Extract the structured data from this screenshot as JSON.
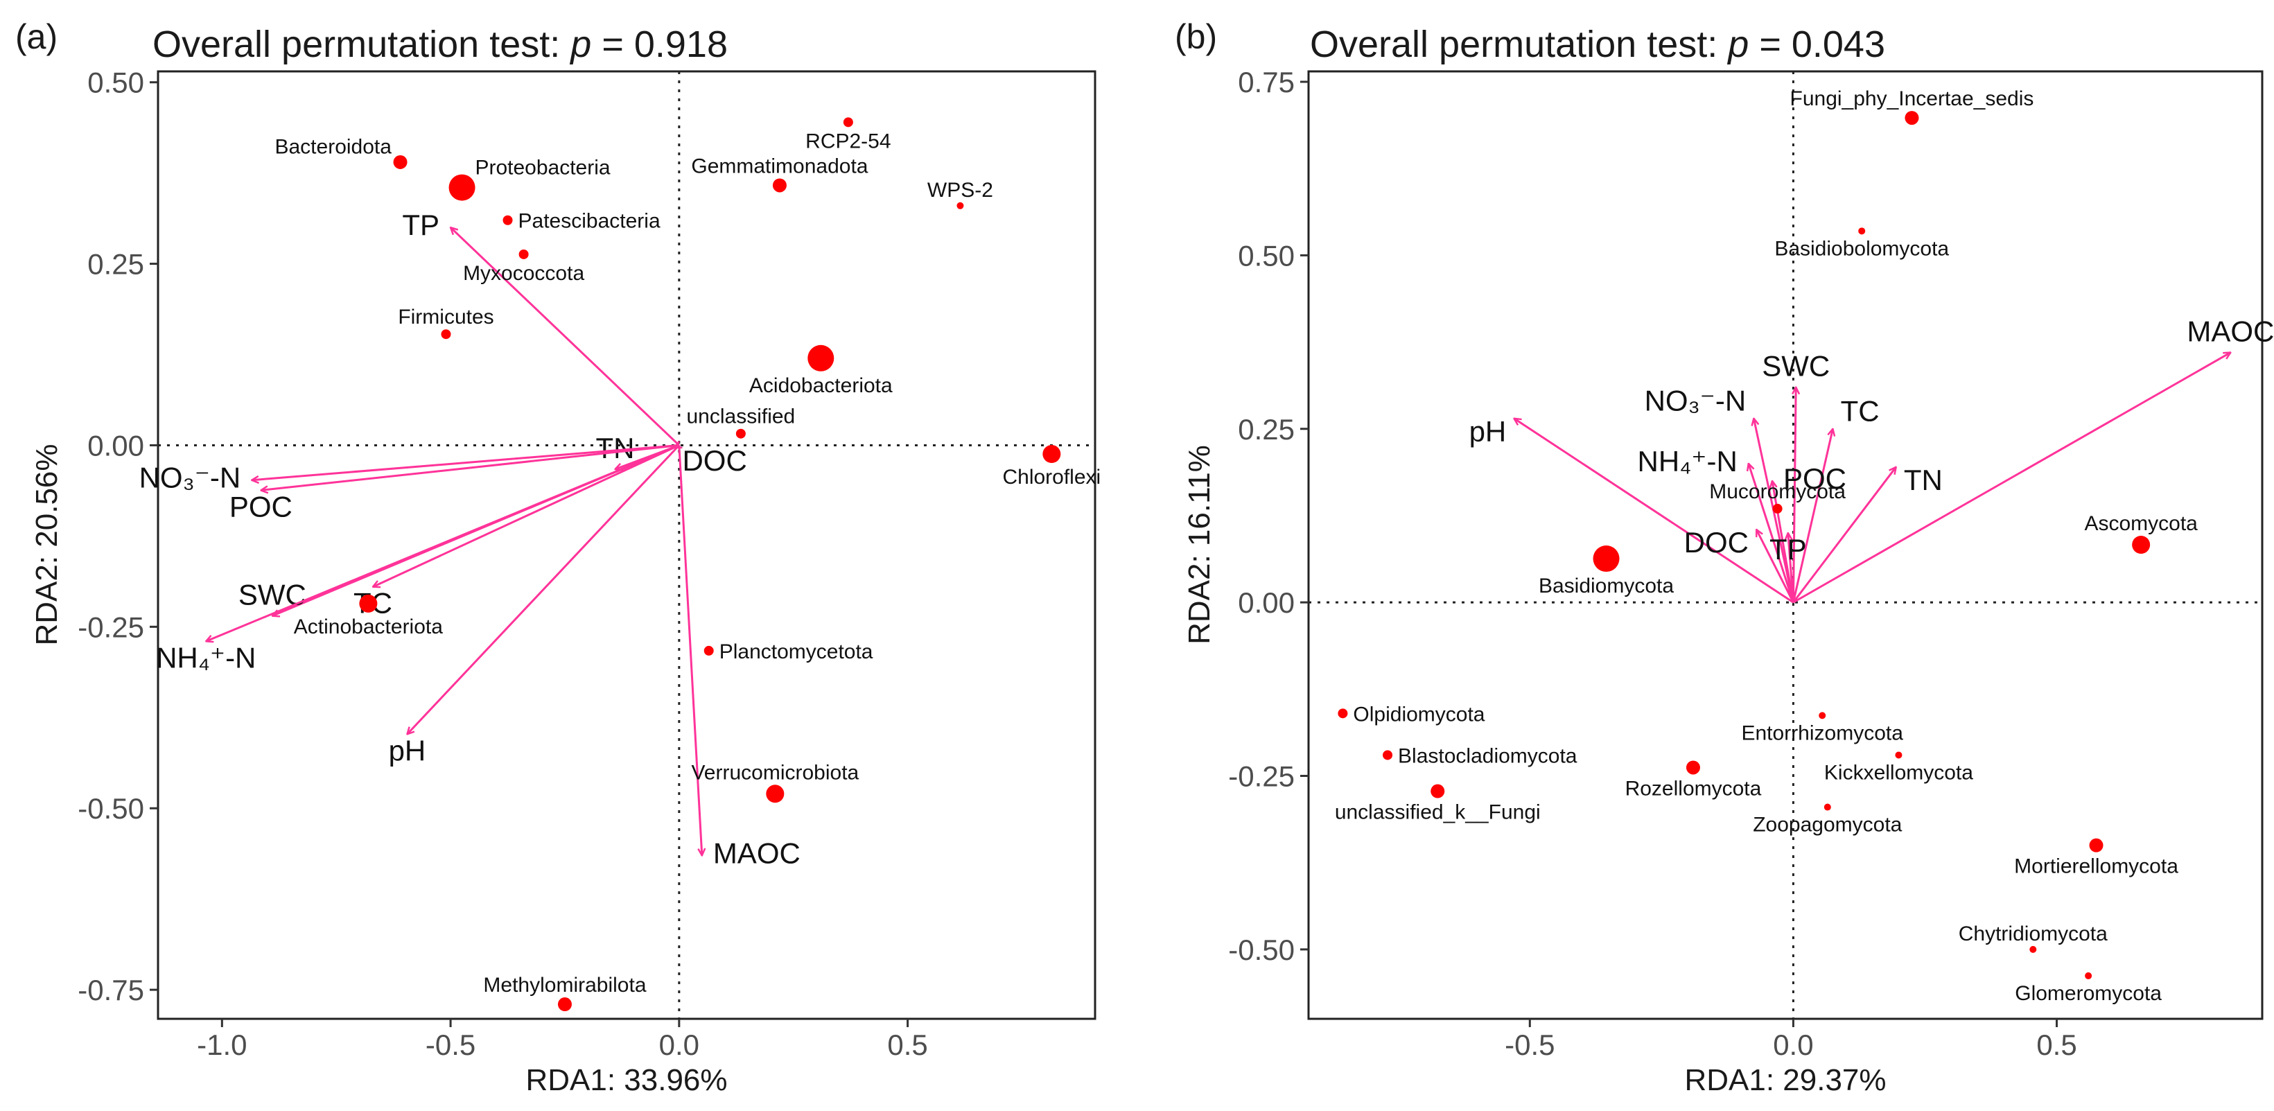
{
  "colors": {
    "point": "#ff0000",
    "arrow": "#ff3399",
    "frame": "#222222"
  },
  "chart_data": [
    {
      "type": "scatter",
      "panel_tag": "(a)",
      "title": {
        "prefix": "Overall permutation test: ",
        "p": "p",
        "suffix": " = 0.918"
      },
      "xlabel": "RDA1: 33.96%",
      "ylabel": "RDA2: 20.56%",
      "xlim": [
        -1.14,
        0.91
      ],
      "ylim": [
        -0.79,
        0.515
      ],
      "x_ticks": [
        -1.0,
        -0.5,
        0.0,
        0.5
      ],
      "x_tick_labels": [
        "-1.0",
        "-0.5",
        "0.0",
        "0.5"
      ],
      "y_ticks": [
        -0.75,
        -0.5,
        -0.25,
        0.0,
        0.25,
        0.5
      ],
      "y_tick_labels": [
        "-0.75",
        "-0.50",
        "-0.25",
        "0.00",
        "0.25",
        "0.50"
      ],
      "species": [
        {
          "name": "Bacteroidota",
          "x": -0.61,
          "y": 0.39,
          "size": 2,
          "label_pos": "tl"
        },
        {
          "name": "Proteobacteria",
          "x": -0.475,
          "y": 0.355,
          "size": 4,
          "label_pos": "tr"
        },
        {
          "name": "RCP2-54",
          "x": 0.37,
          "y": 0.445,
          "size": 1,
          "label_pos": "b"
        },
        {
          "name": "Gemmatimonadota",
          "x": 0.22,
          "y": 0.358,
          "size": 2,
          "label_pos": "t"
        },
        {
          "name": "WPS-2",
          "x": 0.615,
          "y": 0.33,
          "size": 0,
          "label_pos": "t"
        },
        {
          "name": "Patescibacteria",
          "x": -0.375,
          "y": 0.31,
          "size": 1,
          "label_pos": "r"
        },
        {
          "name": "Myxococcota",
          "x": -0.34,
          "y": 0.263,
          "size": 1,
          "label_pos": "b"
        },
        {
          "name": "Firmicutes",
          "x": -0.51,
          "y": 0.153,
          "size": 1,
          "label_pos": "t"
        },
        {
          "name": "Acidobacteriota",
          "x": 0.31,
          "y": 0.12,
          "size": 4,
          "label_pos": "b"
        },
        {
          "name": "unclassified",
          "x": 0.135,
          "y": 0.016,
          "size": 1,
          "label_pos": "t"
        },
        {
          "name": "Chloroflexi",
          "x": 0.815,
          "y": -0.012,
          "size": 3,
          "label_pos": "b"
        },
        {
          "name": "Actinobacteriota",
          "x": -0.68,
          "y": -0.218,
          "size": 3,
          "label_pos": "b"
        },
        {
          "name": "Planctomycetota",
          "x": 0.065,
          "y": -0.283,
          "size": 1,
          "label_pos": "r"
        },
        {
          "name": "Verrucomicrobiota",
          "x": 0.21,
          "y": -0.48,
          "size": 3,
          "label_pos": "t"
        },
        {
          "name": "Methylomirabilota",
          "x": -0.25,
          "y": -0.77,
          "size": 2,
          "label_pos": "t"
        }
      ],
      "env": [
        {
          "name": "TP",
          "x": -0.5,
          "y": 0.3,
          "label_pos": "l"
        },
        {
          "name": "TN",
          "x": -0.14,
          "y": -0.033,
          "label_pos": "t"
        },
        {
          "name": "DOC",
          "x": -0.01,
          "y": -0.003,
          "label_pos": "br"
        },
        {
          "name": "NO₃⁻-N",
          "x": -0.935,
          "y": -0.048,
          "label_pos": "l"
        },
        {
          "name": "POC",
          "x": -0.915,
          "y": -0.062,
          "label_pos": "b"
        },
        {
          "name": "SWC",
          "x": -0.89,
          "y": -0.235,
          "label_pos": "t"
        },
        {
          "name": "TC",
          "x": -0.67,
          "y": -0.195,
          "label_pos": "b"
        },
        {
          "name": "NH₄⁺-N",
          "x": -1.035,
          "y": -0.27,
          "label_pos": "b"
        },
        {
          "name": "pH",
          "x": -0.595,
          "y": -0.398,
          "label_pos": "b"
        },
        {
          "name": "MAOC",
          "x": 0.05,
          "y": -0.565,
          "label_pos": "r"
        }
      ]
    },
    {
      "type": "scatter",
      "panel_tag": "(b)",
      "title": {
        "prefix": "Overall permutation test: ",
        "p": "p",
        "suffix": " = 0.043"
      },
      "xlabel": "RDA1: 29.37%",
      "ylabel": "RDA2: 16.11%",
      "xlim": [
        -0.92,
        0.89
      ],
      "ylim": [
        -0.6,
        0.765
      ],
      "x_ticks": [
        -0.5,
        0.0,
        0.5
      ],
      "x_tick_labels": [
        "-0.5",
        "0.0",
        "0.5"
      ],
      "y_ticks": [
        -0.5,
        -0.25,
        0.0,
        0.25,
        0.5,
        0.75
      ],
      "y_tick_labels": [
        "-0.50",
        "-0.25",
        "0.00",
        "0.25",
        "0.50",
        "0.75"
      ],
      "species": [
        {
          "name": "Fungi_phy_Incertae_sedis",
          "x": 0.225,
          "y": 0.698,
          "size": 2,
          "label_pos": "t"
        },
        {
          "name": "Basidiobolomycota",
          "x": 0.13,
          "y": 0.535,
          "size": 0,
          "label_pos": "b"
        },
        {
          "name": "Mucoromycota",
          "x": -0.03,
          "y": 0.135,
          "size": 1,
          "label_pos": "t"
        },
        {
          "name": "Basidiomycota",
          "x": -0.355,
          "y": 0.063,
          "size": 4,
          "label_pos": "b"
        },
        {
          "name": "Ascomycota",
          "x": 0.66,
          "y": 0.083,
          "size": 3,
          "label_pos": "t"
        },
        {
          "name": "Olpidiomycota",
          "x": -0.855,
          "y": -0.16,
          "size": 1,
          "label_pos": "r"
        },
        {
          "name": "Blastocladiomycota",
          "x": -0.77,
          "y": -0.22,
          "size": 1,
          "label_pos": "r"
        },
        {
          "name": "unclassified_k__Fungi",
          "x": -0.675,
          "y": -0.272,
          "size": 2,
          "label_pos": "b"
        },
        {
          "name": "Rozellomycota",
          "x": -0.19,
          "y": -0.238,
          "size": 2,
          "label_pos": "b"
        },
        {
          "name": "Entorrhizomycota",
          "x": 0.055,
          "y": -0.163,
          "size": 0,
          "label_pos": "b"
        },
        {
          "name": "Kickxellomycota",
          "x": 0.2,
          "y": -0.22,
          "size": 0,
          "label_pos": "b"
        },
        {
          "name": "Zoopagomycota",
          "x": 0.065,
          "y": -0.295,
          "size": 0,
          "label_pos": "b"
        },
        {
          "name": "Mortierellomycota",
          "x": 0.575,
          "y": -0.35,
          "size": 2,
          "label_pos": "b"
        },
        {
          "name": "Chytridiomycota",
          "x": 0.455,
          "y": -0.5,
          "size": 0,
          "label_pos": "t"
        },
        {
          "name": "Glomeromycota",
          "x": 0.56,
          "y": -0.538,
          "size": 0,
          "label_pos": "b"
        }
      ],
      "env": [
        {
          "name": "SWC",
          "x": 0.005,
          "y": 0.31,
          "label_pos": "t"
        },
        {
          "name": "NO₃⁻-N",
          "x": -0.075,
          "y": 0.265,
          "label_pos": "tl"
        },
        {
          "name": "TC",
          "x": 0.075,
          "y": 0.25,
          "label_pos": "tr"
        },
        {
          "name": "NH₄⁺-N",
          "x": -0.085,
          "y": 0.2,
          "label_pos": "l"
        },
        {
          "name": "POC",
          "x": -0.04,
          "y": 0.175,
          "label_pos": "r"
        },
        {
          "name": "TN",
          "x": 0.195,
          "y": 0.195,
          "label_pos": "br"
        },
        {
          "name": "MAOC",
          "x": 0.83,
          "y": 0.36,
          "label_pos": "t"
        },
        {
          "name": "pH",
          "x": -0.53,
          "y": 0.265,
          "label_pos": "bl"
        },
        {
          "name": "DOC",
          "x": -0.07,
          "y": 0.105,
          "label_pos": "bl"
        },
        {
          "name": "TP",
          "x": -0.01,
          "y": 0.1,
          "label_pos": "b"
        }
      ]
    }
  ]
}
